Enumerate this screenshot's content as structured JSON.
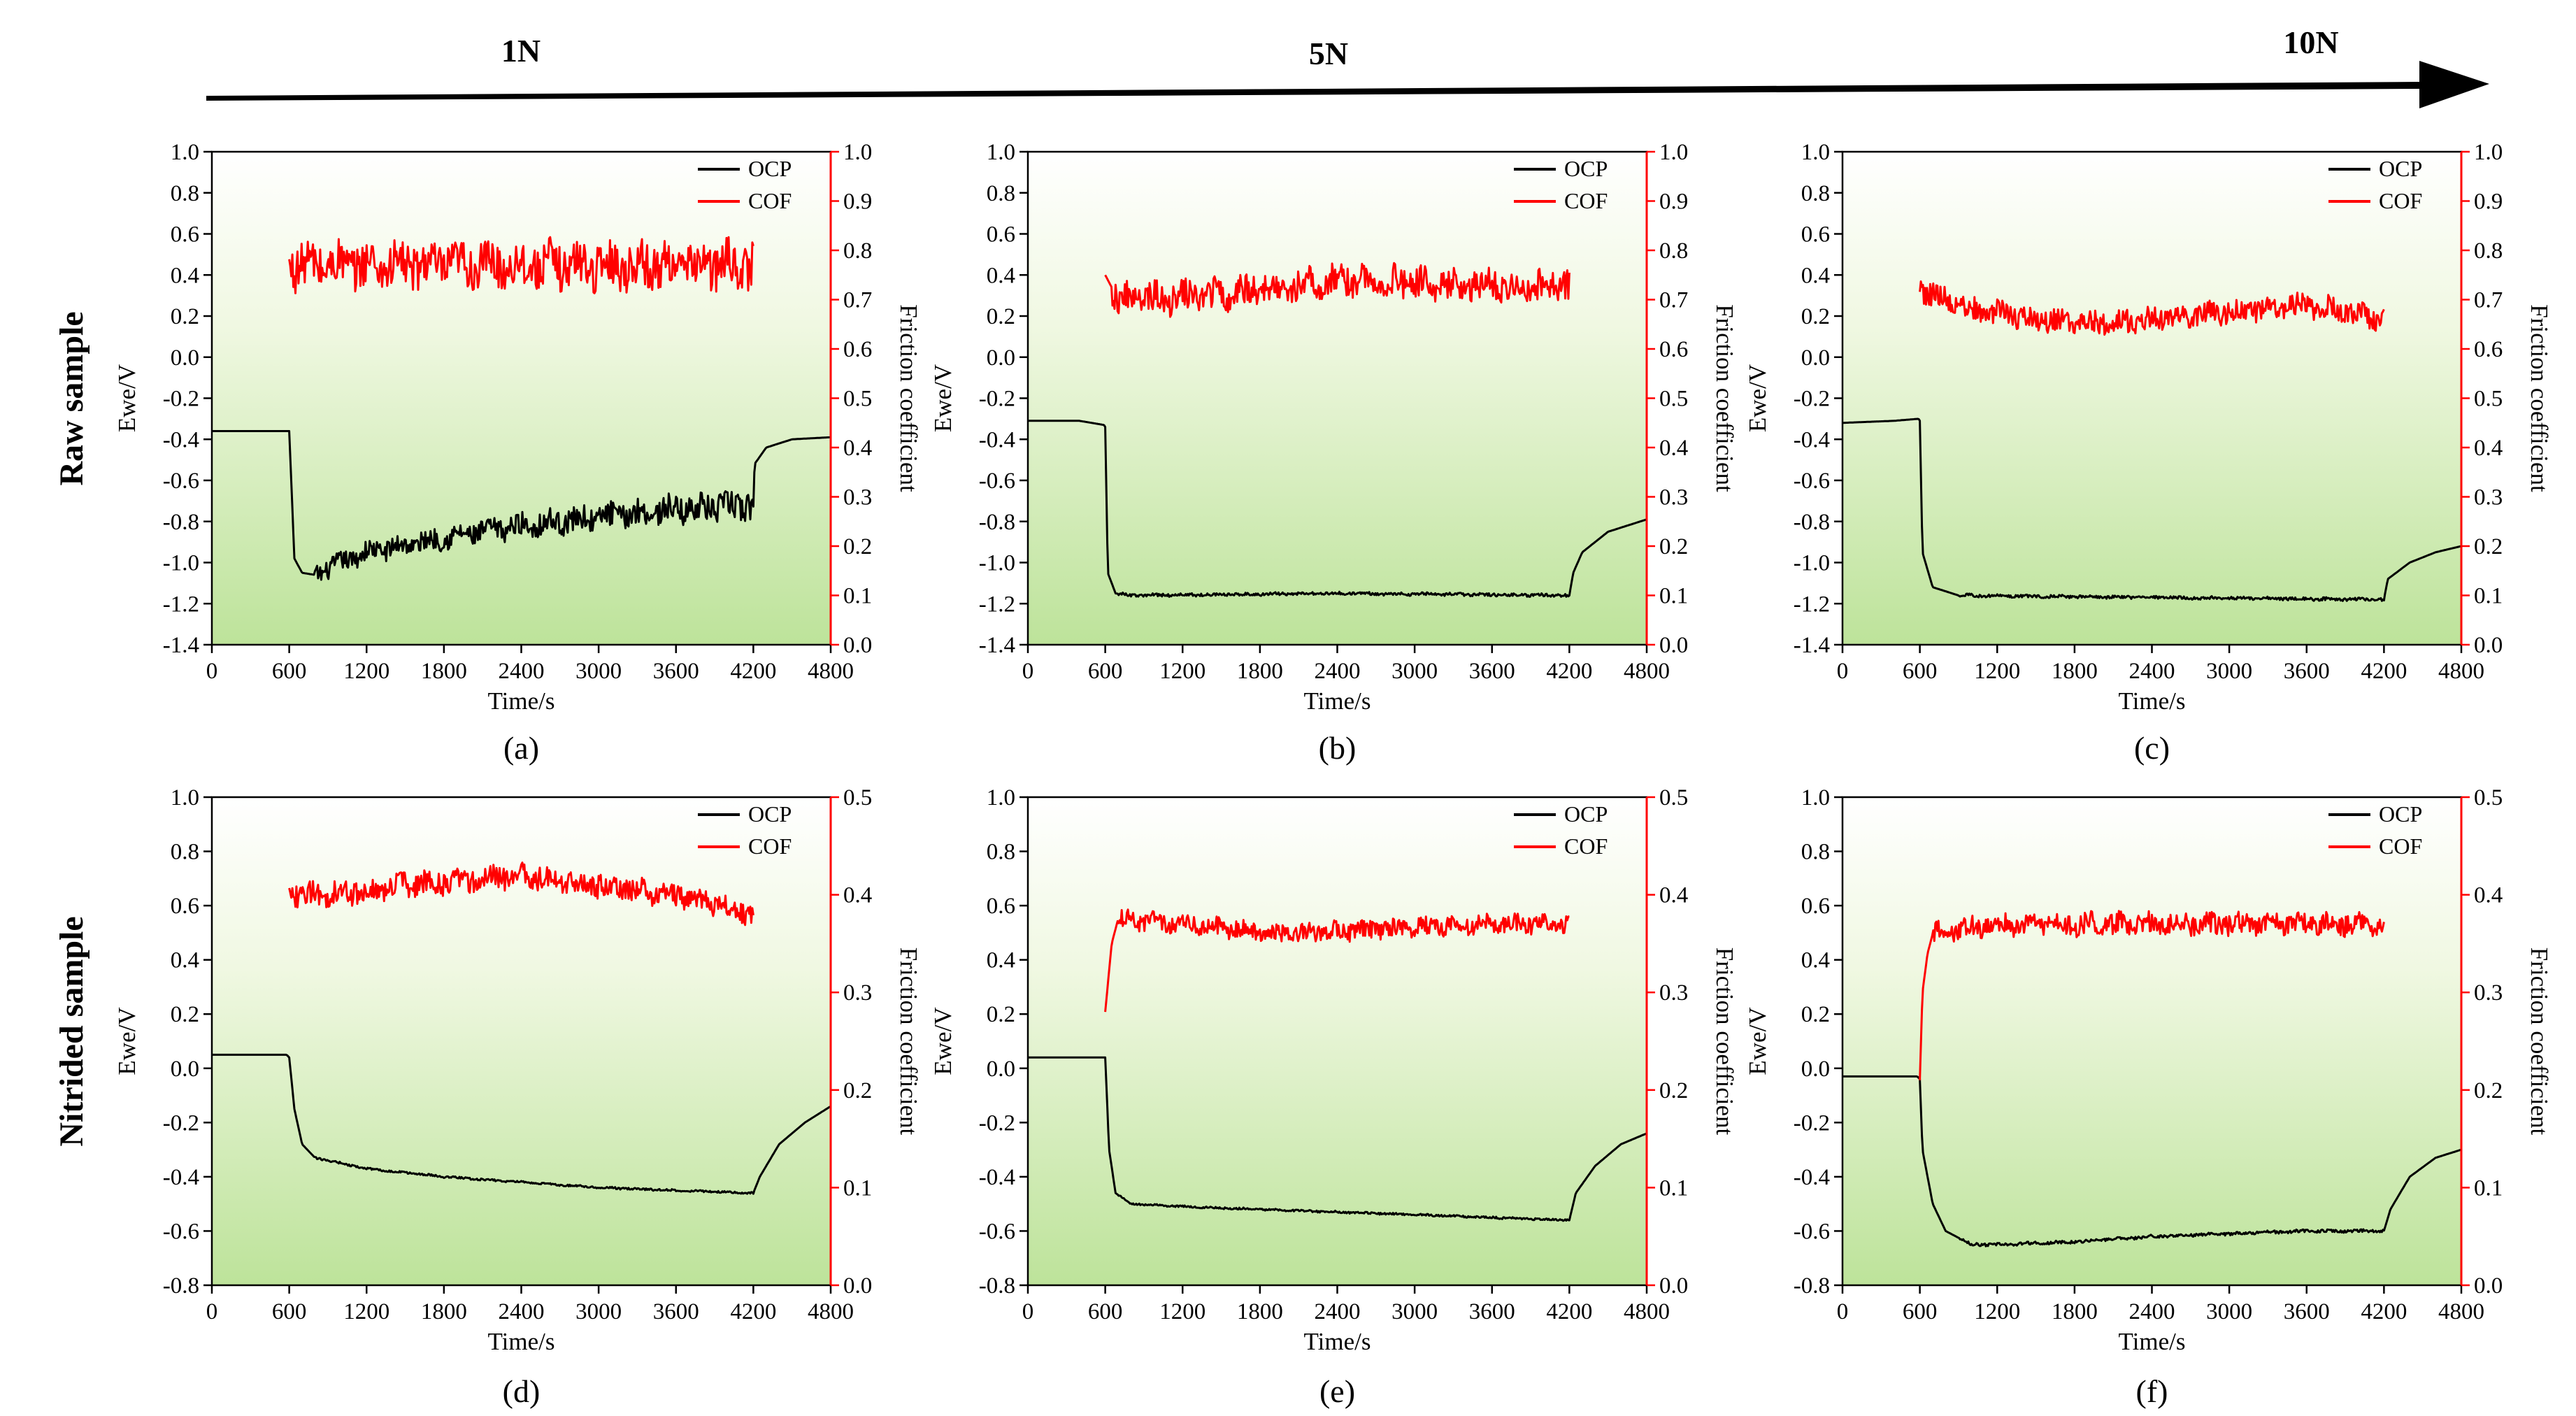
{
  "figure": {
    "load_header": [
      "1N",
      "5N",
      "10N"
    ],
    "row_labels": [
      "Raw sample",
      "Nitrided sample"
    ]
  },
  "chart_data": [
    {
      "type": "line",
      "panel": "(a)",
      "row": "Raw sample",
      "load": "1N",
      "xlabel": "Time/s",
      "ylabel_left": "Ewe/V",
      "ylabel_right": "Friction coefficient",
      "xlim": [
        0,
        4800
      ],
      "xticks": [
        "0",
        "600",
        "1200",
        "1800",
        "2400",
        "3000",
        "3600",
        "4200",
        "4800"
      ],
      "ylim_left": [
        -1.4,
        1.0
      ],
      "yticks_left": [
        "-1.4",
        "-1.2",
        "-1.0",
        "-0.8",
        "-0.6",
        "-0.4",
        "-0.2",
        "0.0",
        "0.2",
        "0.4",
        "0.6",
        "0.8",
        "1.0"
      ],
      "ylim_right": [
        0.0,
        1.0
      ],
      "yticks_right": [
        "0.0",
        "0.1",
        "0.2",
        "0.3",
        "0.4",
        "0.5",
        "0.6",
        "0.7",
        "0.8",
        "0.9",
        "1.0"
      ],
      "legend": [
        "OCP",
        "COF"
      ],
      "legend_position": "top-right",
      "series": [
        {
          "name": "OCP",
          "axis": "left",
          "color": "#000000",
          "points": [
            [
              0,
              -0.36
            ],
            [
              590,
              -0.36
            ],
            [
              600,
              -0.36
            ],
            [
              640,
              -0.98
            ],
            [
              700,
              -1.05
            ],
            [
              800,
              -1.06
            ],
            [
              1000,
              -1.0
            ],
            [
              1200,
              -0.95
            ],
            [
              1800,
              -0.88
            ],
            [
              2400,
              -0.82
            ],
            [
              3000,
              -0.78
            ],
            [
              3600,
              -0.74
            ],
            [
              4200,
              -0.72
            ],
            [
              4210,
              -0.52
            ],
            [
              4300,
              -0.44
            ],
            [
              4500,
              -0.4
            ],
            [
              4800,
              -0.39
            ]
          ],
          "noise": {
            "start": 800,
            "end": 4200,
            "amplitude": 0.05,
            "growth": 1.5
          }
        },
        {
          "name": "COF",
          "axis": "right",
          "color": "#ff0000",
          "points": [
            [
              600,
              0.77
            ],
            [
              4200,
              0.77
            ]
          ],
          "noise": {
            "start": 600,
            "end": 4200,
            "amplitude": 0.05
          }
        }
      ]
    },
    {
      "type": "line",
      "panel": "(b)",
      "row": "Raw sample",
      "load": "5N",
      "xlabel": "Time/s",
      "ylabel_left": "Ewe/V",
      "ylabel_right": "Friction coefficient",
      "xlim": [
        0,
        4800
      ],
      "xticks": [
        "0",
        "600",
        "1200",
        "1800",
        "2400",
        "3000",
        "3600",
        "4200",
        "4800"
      ],
      "ylim_left": [
        -1.4,
        1.0
      ],
      "yticks_left": [
        "-1.4",
        "-1.2",
        "-1.0",
        "-0.8",
        "-0.6",
        "-0.4",
        "-0.2",
        "0.0",
        "0.2",
        "0.4",
        "0.6",
        "0.8",
        "1.0"
      ],
      "ylim_right": [
        0.0,
        1.0
      ],
      "yticks_right": [
        "0.0",
        "0.1",
        "0.2",
        "0.3",
        "0.4",
        "0.5",
        "0.6",
        "0.7",
        "0.8",
        "0.9",
        "1.0"
      ],
      "legend": [
        "OCP",
        "COF"
      ],
      "legend_position": "top-right",
      "series": [
        {
          "name": "OCP",
          "axis": "left",
          "color": "#000000",
          "points": [
            [
              0,
              -0.31
            ],
            [
              400,
              -0.31
            ],
            [
              590,
              -0.33
            ],
            [
              600,
              -0.34
            ],
            [
              620,
              -1.05
            ],
            [
              680,
              -1.15
            ],
            [
              800,
              -1.16
            ],
            [
              2400,
              -1.15
            ],
            [
              4200,
              -1.16
            ],
            [
              4230,
              -1.05
            ],
            [
              4300,
              -0.95
            ],
            [
              4500,
              -0.85
            ],
            [
              4800,
              -0.79
            ]
          ],
          "noise": {
            "start": 700,
            "end": 4200,
            "amplitude": 0.008
          }
        },
        {
          "name": "COF",
          "axis": "right",
          "color": "#ff0000",
          "points": [
            [
              600,
              0.75
            ],
            [
              700,
              0.7
            ],
            [
              1500,
              0.71
            ],
            [
              2400,
              0.74
            ],
            [
              3300,
              0.73
            ],
            [
              4200,
              0.73
            ]
          ],
          "noise": {
            "start": 650,
            "end": 4200,
            "amplitude": 0.035
          }
        }
      ]
    },
    {
      "type": "line",
      "panel": "(c)",
      "row": "Raw sample",
      "load": "10N",
      "xlabel": "Time/s",
      "ylabel_left": "Ewe/V",
      "ylabel_right": "Friction coefficient",
      "xlim": [
        0,
        4800
      ],
      "xticks": [
        "0",
        "600",
        "1200",
        "1800",
        "2400",
        "3000",
        "3600",
        "4200",
        "4800"
      ],
      "ylim_left": [
        -1.4,
        1.0
      ],
      "yticks_left": [
        "-1.4",
        "-1.2",
        "-1.0",
        "-0.8",
        "-0.6",
        "-0.4",
        "-0.2",
        "0.0",
        "0.2",
        "0.4",
        "0.6",
        "0.8",
        "1.0"
      ],
      "ylim_right": [
        0.0,
        1.0
      ],
      "yticks_right": [
        "0.0",
        "0.1",
        "0.2",
        "0.3",
        "0.4",
        "0.5",
        "0.6",
        "0.7",
        "0.8",
        "0.9",
        "1.0"
      ],
      "legend": [
        "OCP",
        "COF"
      ],
      "legend_position": "top-right",
      "series": [
        {
          "name": "OCP",
          "axis": "left",
          "color": "#000000",
          "points": [
            [
              0,
              -0.32
            ],
            [
              400,
              -0.31
            ],
            [
              590,
              -0.3
            ],
            [
              600,
              -0.31
            ],
            [
              620,
              -0.95
            ],
            [
              700,
              -1.12
            ],
            [
              900,
              -1.16
            ],
            [
              2400,
              -1.17
            ],
            [
              4200,
              -1.18
            ],
            [
              4230,
              -1.08
            ],
            [
              4400,
              -1.0
            ],
            [
              4600,
              -0.95
            ],
            [
              4800,
              -0.92
            ]
          ],
          "noise": {
            "start": 900,
            "end": 4200,
            "amplitude": 0.008
          }
        },
        {
          "name": "COF",
          "axis": "right",
          "color": "#ff0000",
          "points": [
            [
              600,
              0.72
            ],
            [
              1000,
              0.68
            ],
            [
              1800,
              0.65
            ],
            [
              2400,
              0.66
            ],
            [
              3600,
              0.69
            ],
            [
              4200,
              0.66
            ]
          ],
          "noise": {
            "start": 600,
            "end": 4200,
            "amplitude": 0.025
          }
        }
      ]
    },
    {
      "type": "line",
      "panel": "(d)",
      "row": "Nitrided sample",
      "load": "1N",
      "xlabel": "Time/s",
      "ylabel_left": "Ewe/V",
      "ylabel_right": "Friction coefficient",
      "xlim": [
        0,
        4800
      ],
      "xticks": [
        "0",
        "600",
        "1200",
        "1800",
        "2400",
        "3000",
        "3600",
        "4200",
        "4800"
      ],
      "ylim_left": [
        -0.8,
        1.0
      ],
      "yticks_left": [
        "-0.8",
        "-0.6",
        "-0.4",
        "-0.2",
        "0.0",
        "0.2",
        "0.4",
        "0.6",
        "0.8",
        "1.0"
      ],
      "ylim_right": [
        0.0,
        0.5
      ],
      "yticks_right": [
        "0.0",
        "0.1",
        "0.2",
        "0.3",
        "0.4",
        "0.5"
      ],
      "legend": [
        "OCP",
        "COF"
      ],
      "legend_position": "top-right",
      "series": [
        {
          "name": "OCP",
          "axis": "left",
          "color": "#000000",
          "points": [
            [
              0,
              0.05
            ],
            [
              580,
              0.05
            ],
            [
              600,
              0.04
            ],
            [
              640,
              -0.15
            ],
            [
              700,
              -0.28
            ],
            [
              800,
              -0.33
            ],
            [
              1200,
              -0.37
            ],
            [
              1800,
              -0.4
            ],
            [
              2400,
              -0.42
            ],
            [
              3000,
              -0.44
            ],
            [
              3600,
              -0.45
            ],
            [
              4200,
              -0.46
            ],
            [
              4250,
              -0.4
            ],
            [
              4400,
              -0.28
            ],
            [
              4600,
              -0.2
            ],
            [
              4800,
              -0.14
            ]
          ],
          "noise": {
            "start": 800,
            "end": 4200,
            "amplitude": 0.004
          }
        },
        {
          "name": "COF",
          "axis": "right",
          "color": "#ff0000",
          "points": [
            [
              600,
              0.4
            ],
            [
              900,
              0.4
            ],
            [
              1500,
              0.41
            ],
            [
              2400,
              0.42
            ],
            [
              3000,
              0.41
            ],
            [
              3600,
              0.4
            ],
            [
              4200,
              0.38
            ]
          ],
          "noise": {
            "start": 600,
            "end": 4200,
            "amplitude": 0.013
          }
        }
      ]
    },
    {
      "type": "line",
      "panel": "(e)",
      "row": "Nitrided sample",
      "load": "5N",
      "xlabel": "Time/s",
      "ylabel_left": "Ewe/V",
      "ylabel_right": "Friction coefficient",
      "xlim": [
        0,
        4800
      ],
      "xticks": [
        "0",
        "600",
        "1200",
        "1800",
        "2400",
        "3000",
        "3600",
        "4200",
        "4800"
      ],
      "ylim_left": [
        -0.8,
        1.0
      ],
      "yticks_left": [
        "-0.8",
        "-0.6",
        "-0.4",
        "-0.2",
        "0.0",
        "0.2",
        "0.4",
        "0.6",
        "0.8",
        "1.0"
      ],
      "ylim_right": [
        0.0,
        0.5
      ],
      "yticks_right": [
        "0.0",
        "0.1",
        "0.2",
        "0.3",
        "0.4",
        "0.5"
      ],
      "legend": [
        "OCP",
        "COF"
      ],
      "legend_position": "top-right",
      "series": [
        {
          "name": "OCP",
          "axis": "left",
          "color": "#000000",
          "points": [
            [
              0,
              0.04
            ],
            [
              580,
              0.04
            ],
            [
              600,
              0.04
            ],
            [
              630,
              -0.3
            ],
            [
              680,
              -0.46
            ],
            [
              800,
              -0.5
            ],
            [
              1200,
              -0.51
            ],
            [
              1800,
              -0.52
            ],
            [
              2400,
              -0.53
            ],
            [
              3000,
              -0.54
            ],
            [
              3600,
              -0.55
            ],
            [
              4200,
              -0.56
            ],
            [
              4250,
              -0.46
            ],
            [
              4400,
              -0.36
            ],
            [
              4600,
              -0.28
            ],
            [
              4800,
              -0.24
            ]
          ],
          "noise": {
            "start": 700,
            "end": 4200,
            "amplitude": 0.004
          }
        },
        {
          "name": "COF",
          "axis": "right",
          "color": "#ff0000",
          "points": [
            [
              600,
              0.28
            ],
            [
              650,
              0.35
            ],
            [
              700,
              0.375
            ],
            [
              1200,
              0.37
            ],
            [
              2000,
              0.36
            ],
            [
              2800,
              0.365
            ],
            [
              3600,
              0.37
            ],
            [
              4200,
              0.37
            ]
          ],
          "noise": {
            "start": 700,
            "end": 4200,
            "amplitude": 0.01
          }
        }
      ]
    },
    {
      "type": "line",
      "panel": "(f)",
      "row": "Nitrided sample",
      "load": "10N",
      "xlabel": "Time/s",
      "ylabel_left": "Ewe/V",
      "ylabel_right": "Friction coefficient",
      "xlim": [
        0,
        4800
      ],
      "xticks": [
        "0",
        "600",
        "1200",
        "1800",
        "2400",
        "3000",
        "3600",
        "4200",
        "4800"
      ],
      "ylim_left": [
        -0.8,
        1.0
      ],
      "yticks_left": [
        "-0.8",
        "-0.6",
        "-0.4",
        "-0.2",
        "0.0",
        "0.2",
        "0.4",
        "0.6",
        "0.8",
        "1.0"
      ],
      "ylim_right": [
        0.0,
        0.5
      ],
      "yticks_right": [
        "0.0",
        "0.1",
        "0.2",
        "0.3",
        "0.4",
        "0.5"
      ],
      "legend": [
        "OCP",
        "COF"
      ],
      "legend_position": "top-right",
      "series": [
        {
          "name": "OCP",
          "axis": "left",
          "color": "#000000",
          "points": [
            [
              0,
              -0.03
            ],
            [
              580,
              -0.03
            ],
            [
              600,
              -0.04
            ],
            [
              620,
              -0.3
            ],
            [
              700,
              -0.5
            ],
            [
              800,
              -0.6
            ],
            [
              1000,
              -0.65
            ],
            [
              1200,
              -0.65
            ],
            [
              1800,
              -0.64
            ],
            [
              2400,
              -0.62
            ],
            [
              3000,
              -0.61
            ],
            [
              3600,
              -0.6
            ],
            [
              4200,
              -0.6
            ],
            [
              4250,
              -0.52
            ],
            [
              4400,
              -0.4
            ],
            [
              4600,
              -0.33
            ],
            [
              4800,
              -0.3
            ]
          ],
          "noise": {
            "start": 900,
            "end": 4200,
            "amplitude": 0.006
          }
        },
        {
          "name": "COF",
          "axis": "right",
          "color": "#ff0000",
          "points": [
            [
              600,
              0.21
            ],
            [
              620,
              0.3
            ],
            [
              660,
              0.34
            ],
            [
              700,
              0.36
            ],
            [
              1200,
              0.37
            ],
            [
              2400,
              0.37
            ],
            [
              3600,
              0.37
            ],
            [
              4200,
              0.37
            ]
          ],
          "noise": {
            "start": 700,
            "end": 4200,
            "amplitude": 0.012
          }
        }
      ]
    }
  ]
}
